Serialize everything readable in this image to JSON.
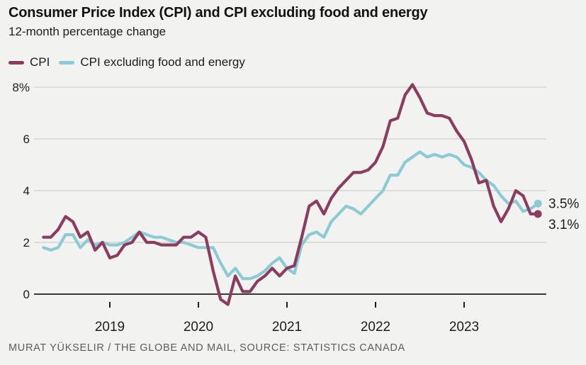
{
  "header": {
    "title": "Consumer Price Index (CPI) and CPI excluding food and energy",
    "subtitle": "12-month percentage change"
  },
  "legend": {
    "items": [
      {
        "label": "CPI",
        "color": "#8b3c5f"
      },
      {
        "label": "CPI excluding food and energy",
        "color": "#8ccbd5"
      }
    ]
  },
  "chart_data": {
    "type": "line",
    "title": "Consumer Price Index (CPI) and CPI excluding food and energy",
    "subtitle": "12-month percentage change",
    "x_start_month": "2018-04",
    "x_end_month": "2023-11",
    "x_ticks": [
      {
        "label": "2019",
        "month_index": 9
      },
      {
        "label": "2020",
        "month_index": 21
      },
      {
        "label": "2021",
        "month_index": 33
      },
      {
        "label": "2022",
        "month_index": 45
      },
      {
        "label": "2023",
        "month_index": 57
      }
    ],
    "y_ticks": [
      {
        "value": 0,
        "label": "0"
      },
      {
        "value": 2,
        "label": "2"
      },
      {
        "value": 4,
        "label": "4"
      },
      {
        "value": 6,
        "label": "6"
      },
      {
        "value": 8,
        "label": "8%"
      }
    ],
    "ylim": [
      -0.6,
      8.4
    ],
    "grid": "horizontal",
    "legend_position": "top-left",
    "series": [
      {
        "name": "CPI",
        "color": "#8b3c5f",
        "end_label": "3.1%",
        "end_value": 3.1,
        "values": [
          2.2,
          2.2,
          2.5,
          3.0,
          2.8,
          2.2,
          2.4,
          1.7,
          2.0,
          1.4,
          1.5,
          1.9,
          2.0,
          2.4,
          2.0,
          2.0,
          1.9,
          1.9,
          1.9,
          2.2,
          2.2,
          2.4,
          2.2,
          0.9,
          -0.2,
          -0.4,
          0.7,
          0.1,
          0.1,
          0.5,
          0.7,
          1.0,
          0.7,
          1.0,
          1.1,
          2.2,
          3.4,
          3.6,
          3.1,
          3.7,
          4.1,
          4.4,
          4.7,
          4.7,
          4.8,
          5.1,
          5.7,
          6.7,
          6.8,
          7.7,
          8.1,
          7.6,
          7.0,
          6.9,
          6.9,
          6.8,
          6.3,
          5.9,
          5.2,
          4.3,
          4.4,
          3.4,
          2.8,
          3.3,
          4.0,
          3.8,
          3.1,
          3.1
        ]
      },
      {
        "name": "CPI excluding food and energy",
        "color": "#8ccbd5",
        "end_label": "3.5%",
        "end_value": 3.5,
        "values": [
          1.8,
          1.7,
          1.8,
          2.3,
          2.3,
          1.8,
          2.1,
          1.9,
          2.0,
          1.9,
          1.9,
          2.0,
          2.2,
          2.4,
          2.3,
          2.2,
          2.2,
          2.1,
          2.0,
          2.0,
          1.9,
          1.8,
          1.8,
          1.8,
          1.2,
          0.7,
          1.0,
          0.6,
          0.6,
          0.7,
          0.9,
          1.2,
          1.4,
          1.0,
          0.8,
          1.9,
          2.3,
          2.4,
          2.2,
          2.8,
          3.1,
          3.4,
          3.3,
          3.1,
          3.4,
          3.7,
          4.0,
          4.6,
          4.6,
          5.1,
          5.3,
          5.5,
          5.3,
          5.4,
          5.3,
          5.4,
          5.3,
          5.0,
          4.9,
          4.7,
          4.4,
          4.2,
          3.8,
          3.5,
          3.6,
          3.2,
          3.3,
          3.5
        ]
      }
    ]
  },
  "footer": {
    "credit": "MURAT YÜKSELIR / THE GLOBE AND MAIL, SOURCE: STATISTICS CANADA"
  },
  "colors": {
    "background": "#f2f2f0",
    "grid": "#cfcfcd",
    "axis": "#1d1d1d",
    "text": "#1d1d1d",
    "muted": "#5c5c5c"
  }
}
